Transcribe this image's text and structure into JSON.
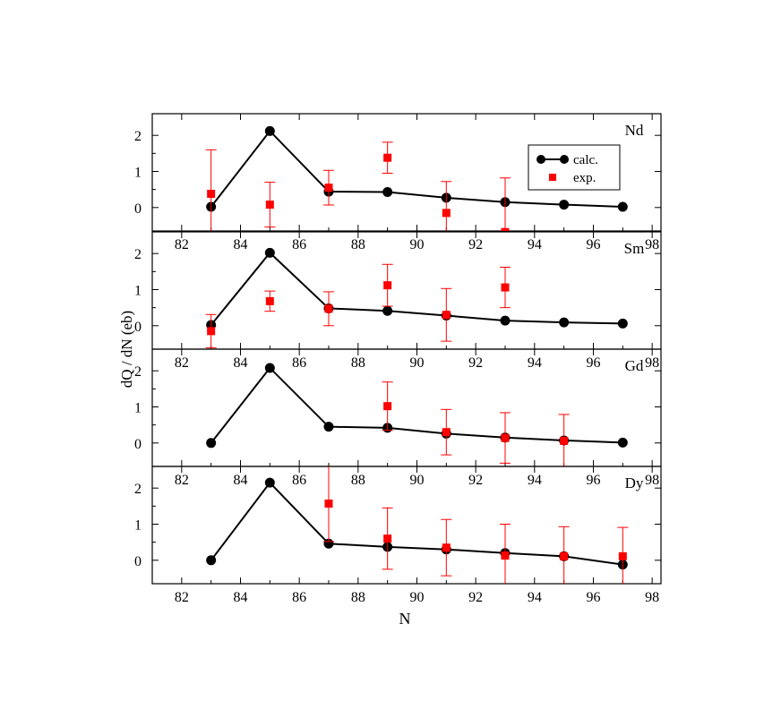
{
  "figure": {
    "ylabel": "dQ / dN (eb)",
    "xlabel": "N",
    "legend": {
      "calc_label": "calc.",
      "exp_label": "exp.",
      "position": "top-right of first panel"
    }
  },
  "colors": {
    "calc": "#000000",
    "exp": "#ff0000",
    "frame": "#000000"
  },
  "chart_data": [
    {
      "type": "scatter",
      "title": "Nd",
      "xlim": [
        81,
        98.3
      ],
      "ylim": [
        -0.65,
        2.6
      ],
      "xticks": [
        82,
        84,
        86,
        88,
        90,
        92,
        94,
        96,
        98
      ],
      "yticks": [
        0,
        1,
        2
      ],
      "series": [
        {
          "name": "calc.",
          "style": "line+circle",
          "x": [
            83,
            85,
            87,
            89,
            91,
            93,
            95,
            97
          ],
          "y": [
            0.02,
            2.12,
            0.44,
            0.43,
            0.27,
            0.15,
            0.08,
            0.02
          ]
        },
        {
          "name": "exp.",
          "style": "square+errorbar",
          "x": [
            83,
            85,
            87,
            89,
            91,
            93
          ],
          "y": [
            0.38,
            0.08,
            0.55,
            1.38,
            -0.15,
            -0.68
          ],
          "err": [
            1.22,
            0.62,
            0.48,
            0.43,
            0.87,
            1.5
          ]
        }
      ]
    },
    {
      "type": "scatter",
      "title": "Sm",
      "xlim": [
        81,
        98.3
      ],
      "ylim": [
        -0.65,
        2.6
      ],
      "xticks": [
        82,
        84,
        86,
        88,
        90,
        92,
        94,
        96,
        98
      ],
      "yticks": [
        0,
        1,
        2
      ],
      "series": [
        {
          "name": "calc.",
          "style": "line+circle",
          "x": [
            83,
            85,
            87,
            89,
            91,
            93,
            95,
            97
          ],
          "y": [
            0.02,
            2.02,
            0.48,
            0.41,
            0.28,
            0.14,
            0.09,
            0.06
          ]
        },
        {
          "name": "exp.",
          "style": "square+errorbar",
          "x": [
            83,
            85,
            87,
            89,
            91,
            93
          ],
          "y": [
            -0.15,
            0.68,
            0.47,
            1.12,
            0.3,
            1.06
          ],
          "err": [
            0.46,
            0.28,
            0.47,
            0.58,
            0.73,
            0.56
          ]
        }
      ]
    },
    {
      "type": "scatter",
      "title": "Gd",
      "xlim": [
        81,
        98.3
      ],
      "ylim": [
        -0.65,
        2.6
      ],
      "xticks": [
        82,
        84,
        86,
        88,
        90,
        92,
        94,
        96,
        98
      ],
      "yticks": [
        0,
        1,
        2
      ],
      "series": [
        {
          "name": "calc.",
          "style": "line+circle",
          "x": [
            83,
            85,
            87,
            89,
            91,
            93,
            95,
            97
          ],
          "y": [
            0.0,
            2.08,
            0.45,
            0.42,
            0.26,
            0.15,
            0.07,
            0.01
          ]
        },
        {
          "name": "exp.",
          "style": "square+errorbar",
          "x": [
            89,
            91,
            93,
            95
          ],
          "y": [
            1.02,
            0.3,
            0.14,
            0.06
          ],
          "err": [
            0.67,
            0.63,
            0.7,
            0.73
          ]
        }
      ]
    },
    {
      "type": "scatter",
      "title": "Dy",
      "xlim": [
        81,
        98.3
      ],
      "ylim": [
        -0.65,
        2.6
      ],
      "xticks": [
        82,
        84,
        86,
        88,
        90,
        92,
        94,
        96,
        98
      ],
      "yticks": [
        0,
        1,
        2
      ],
      "series": [
        {
          "name": "calc.",
          "style": "line+circle",
          "x": [
            83,
            85,
            87,
            89,
            91,
            93,
            95,
            97
          ],
          "y": [
            0.0,
            2.15,
            0.46,
            0.37,
            0.3,
            0.2,
            0.11,
            -0.12
          ]
        },
        {
          "name": "exp.",
          "style": "square+errorbar",
          "x": [
            87,
            89,
            91,
            93,
            95,
            97
          ],
          "y": [
            1.57,
            0.6,
            0.35,
            0.13,
            0.11,
            0.11
          ],
          "err": [
            1.05,
            0.85,
            0.78,
            0.87,
            0.82,
            0.8
          ]
        }
      ]
    }
  ]
}
